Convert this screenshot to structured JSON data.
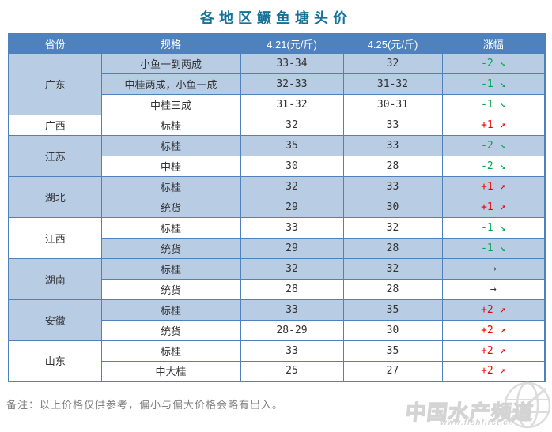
{
  "title": "各地区鳜鱼塘头价",
  "colors": {
    "title": "#15739B",
    "header_bg": "#4F81BD",
    "header_text": "#FFFFFF",
    "border": "#4F81BD",
    "shade": "#B8CCE4",
    "text": "#333333",
    "up": "#EE0000",
    "down": "#00A550",
    "flat": "#333333",
    "note": "#808080",
    "watermark": "#D4D4D4"
  },
  "arrows": {
    "down": "↘",
    "up": "↗",
    "flat": "→"
  },
  "table": {
    "headers": [
      "省份",
      "规格",
      "4.21(元/斤)",
      "4.25(元/斤)",
      "涨幅"
    ],
    "provinces": [
      {
        "name": "广东",
        "shaded": true,
        "rows": [
          {
            "spec": "小鱼一到两成",
            "price_0421": "33-34",
            "price_0425": "32",
            "change": "-2",
            "dir": "down",
            "shaded": true
          },
          {
            "spec": "中桂两成，小鱼一成",
            "price_0421": "32-33",
            "price_0425": "31-32",
            "change": "-1",
            "dir": "down",
            "shaded": true
          },
          {
            "spec": "中桂三成",
            "price_0421": "31-32",
            "price_0425": "30-31",
            "change": "-1",
            "dir": "down",
            "shaded": false
          }
        ]
      },
      {
        "name": "广西",
        "shaded": false,
        "rows": [
          {
            "spec": "标桂",
            "price_0421": "32",
            "price_0425": "33",
            "change": "+1",
            "dir": "up",
            "shaded": false
          }
        ]
      },
      {
        "name": "江苏",
        "shaded": true,
        "rows": [
          {
            "spec": "标桂",
            "price_0421": "35",
            "price_0425": "33",
            "change": "-2",
            "dir": "down",
            "shaded": true
          },
          {
            "spec": "中桂",
            "price_0421": "30",
            "price_0425": "28",
            "change": "-2",
            "dir": "down",
            "shaded": false
          }
        ]
      },
      {
        "name": "湖北",
        "shaded": true,
        "rows": [
          {
            "spec": "标桂",
            "price_0421": "32",
            "price_0425": "33",
            "change": "+1",
            "dir": "up",
            "shaded": true
          },
          {
            "spec": "统货",
            "price_0421": "29",
            "price_0425": "30",
            "change": "+1",
            "dir": "up",
            "shaded": true
          }
        ]
      },
      {
        "name": "江西",
        "shaded": false,
        "rows": [
          {
            "spec": "标桂",
            "price_0421": "33",
            "price_0425": "32",
            "change": "-1",
            "dir": "down",
            "shaded": false
          },
          {
            "spec": "统货",
            "price_0421": "29",
            "price_0425": "28",
            "change": "-1",
            "dir": "down",
            "shaded": true
          }
        ]
      },
      {
        "name": "湖南",
        "shaded": true,
        "rows": [
          {
            "spec": "标桂",
            "price_0421": "32",
            "price_0425": "32",
            "change": "",
            "dir": "flat",
            "shaded": true
          },
          {
            "spec": "统货",
            "price_0421": "28",
            "price_0425": "28",
            "change": "",
            "dir": "flat",
            "shaded": false
          }
        ]
      },
      {
        "name": "安徽",
        "shaded": true,
        "rows": [
          {
            "spec": "标桂",
            "price_0421": "33",
            "price_0425": "35",
            "change": "+2",
            "dir": "up",
            "shaded": true
          },
          {
            "spec": "统货",
            "price_0421": "28-29",
            "price_0425": "30",
            "change": "+2",
            "dir": "up",
            "shaded": false
          }
        ]
      },
      {
        "name": "山东",
        "shaded": false,
        "rows": [
          {
            "spec": "标桂",
            "price_0421": "33",
            "price_0425": "35",
            "change": "+2",
            "dir": "up",
            "shaded": false
          },
          {
            "spec": "中大桂",
            "price_0421": "25",
            "price_0425": "27",
            "change": "+2",
            "dir": "up",
            "shaded": false
          }
        ]
      }
    ]
  },
  "note": "备注：以上价格仅供参考，偏小与偏大价格会略有出入。",
  "watermark": {
    "brand": "中国水产频道",
    "url": "www.fishfirst.cn"
  },
  "chart_data": {
    "type": "table",
    "title": "各地区鳜鱼塘头价",
    "columns": [
      "省份",
      "规格",
      "4.21(元/斤)",
      "4.25(元/斤)",
      "涨幅"
    ],
    "rows": [
      [
        "广东",
        "小鱼一到两成",
        "33-34",
        "32",
        "-2 ↘"
      ],
      [
        "广东",
        "中桂两成，小鱼一成",
        "32-33",
        "31-32",
        "-1 ↘"
      ],
      [
        "广东",
        "中桂三成",
        "31-32",
        "30-31",
        "-1 ↘"
      ],
      [
        "广西",
        "标桂",
        "32",
        "33",
        "+1 ↗"
      ],
      [
        "江苏",
        "标桂",
        "35",
        "33",
        "-2 ↘"
      ],
      [
        "江苏",
        "中桂",
        "30",
        "28",
        "-2 ↘"
      ],
      [
        "湖北",
        "标桂",
        "32",
        "33",
        "+1 ↗"
      ],
      [
        "湖北",
        "统货",
        "29",
        "30",
        "+1 ↗"
      ],
      [
        "江西",
        "标桂",
        "33",
        "32",
        "-1 ↘"
      ],
      [
        "江西",
        "统货",
        "29",
        "28",
        "-1 ↘"
      ],
      [
        "湖南",
        "标桂",
        "32",
        "32",
        "→"
      ],
      [
        "湖南",
        "统货",
        "28",
        "28",
        "→"
      ],
      [
        "安徽",
        "标桂",
        "33",
        "35",
        "+2 ↗"
      ],
      [
        "安徽",
        "统货",
        "28-29",
        "30",
        "+2 ↗"
      ],
      [
        "山东",
        "标桂",
        "33",
        "35",
        "+2 ↗"
      ],
      [
        "山东",
        "中大桂",
        "25",
        "27",
        "+2 ↗"
      ]
    ],
    "legend": "none",
    "notes": "red ↗ = price up, green ↘ = price down, black → = unchanged"
  }
}
